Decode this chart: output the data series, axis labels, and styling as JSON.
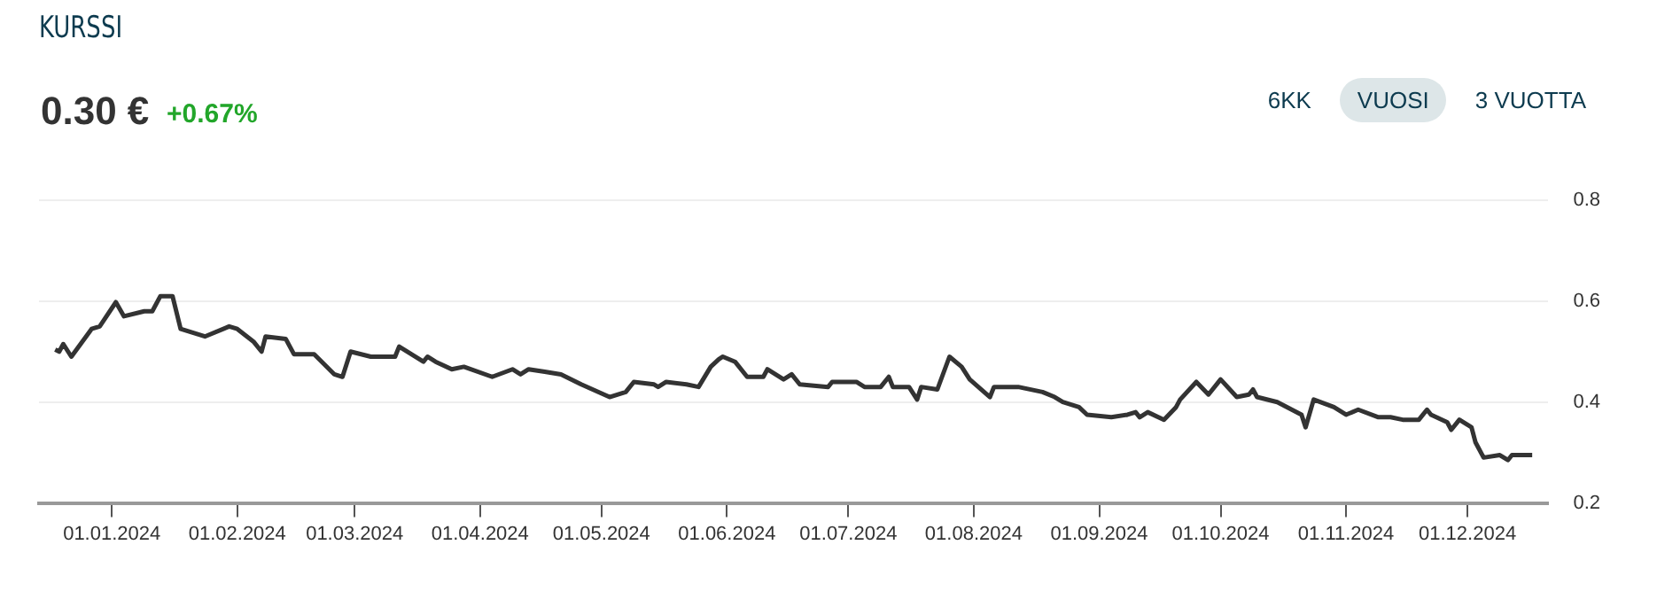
{
  "chart_data": {
    "type": "line",
    "title": "KURSSI",
    "subtitle": "0.30 €",
    "annotations": [
      "+0.67%",
      "6KK",
      "VUOSI",
      "3 VUOTTA"
    ],
    "x": [
      "2023-12-18",
      "2023-12-19",
      "2023-12-20",
      "2023-12-22",
      "2023-12-27",
      "2023-12-29",
      "2024-01-02",
      "2024-01-04",
      "2024-01-09",
      "2024-01-11",
      "2024-01-13",
      "2024-01-16",
      "2024-01-18",
      "2024-01-24",
      "2024-01-30",
      "2024-02-01",
      "2024-02-05",
      "2024-02-07",
      "2024-02-08",
      "2024-02-13",
      "2024-02-15",
      "2024-02-20",
      "2024-02-25",
      "2024-02-27",
      "2024-02-29",
      "2024-03-05",
      "2024-03-11",
      "2024-03-12",
      "2024-03-18",
      "2024-03-19",
      "2024-03-21",
      "2024-03-25",
      "2024-03-28",
      "2024-04-04",
      "2024-04-09",
      "2024-04-11",
      "2024-04-13",
      "2024-04-17",
      "2024-04-21",
      "2024-04-26",
      "2024-05-03",
      "2024-05-07",
      "2024-05-09",
      "2024-05-14",
      "2024-05-15",
      "2024-05-17",
      "2024-05-22",
      "2024-05-25",
      "2024-05-28",
      "2024-05-30",
      "2024-05-31",
      "2024-06-03",
      "2024-06-06",
      "2024-06-10",
      "2024-06-11",
      "2024-06-15",
      "2024-06-17",
      "2024-06-19",
      "2024-06-26",
      "2024-06-27",
      "2024-07-03",
      "2024-07-05",
      "2024-07-09",
      "2024-07-11",
      "2024-07-12",
      "2024-07-16",
      "2024-07-18",
      "2024-07-19",
      "2024-07-23",
      "2024-07-26",
      "2024-07-29",
      "2024-07-31",
      "2024-08-05",
      "2024-08-06",
      "2024-08-12",
      "2024-08-18",
      "2024-08-21",
      "2024-08-23",
      "2024-08-27",
      "2024-08-29",
      "2024-09-04",
      "2024-09-08",
      "2024-09-10",
      "2024-09-11",
      "2024-09-13",
      "2024-09-17",
      "2024-09-20",
      "2024-09-21",
      "2024-09-25",
      "2024-09-28",
      "2024-10-01",
      "2024-10-05",
      "2024-10-08",
      "2024-10-09",
      "2024-10-10",
      "2024-10-15",
      "2024-10-21",
      "2024-10-22",
      "2024-10-24",
      "2024-10-29",
      "2024-11-01",
      "2024-11-04",
      "2024-11-09",
      "2024-11-12",
      "2024-11-15",
      "2024-11-19",
      "2024-11-21",
      "2024-11-22",
      "2024-11-26",
      "2024-11-27",
      "2024-11-29",
      "2024-12-02",
      "2024-12-03",
      "2024-12-05",
      "2024-12-09",
      "2024-12-11",
      "2024-12-12",
      "2024-12-17"
    ],
    "series": [
      {
        "color": "#333333",
        "values": [
          0.504,
          0.5,
          0.515,
          0.49,
          0.545,
          0.55,
          0.598,
          0.57,
          0.58,
          0.58,
          0.61,
          0.61,
          0.545,
          0.53,
          0.55,
          0.545,
          0.52,
          0.5,
          0.53,
          0.525,
          0.495,
          0.495,
          0.455,
          0.45,
          0.5,
          0.49,
          0.49,
          0.51,
          0.48,
          0.49,
          0.48,
          0.465,
          0.47,
          0.45,
          0.465,
          0.455,
          0.465,
          0.46,
          0.455,
          0.435,
          0.41,
          0.42,
          0.44,
          0.435,
          0.43,
          0.44,
          0.435,
          0.43,
          0.47,
          0.485,
          0.49,
          0.48,
          0.45,
          0.45,
          0.465,
          0.445,
          0.455,
          0.435,
          0.43,
          0.44,
          0.44,
          0.43,
          0.43,
          0.45,
          0.43,
          0.43,
          0.405,
          0.43,
          0.425,
          0.49,
          0.47,
          0.445,
          0.41,
          0.43,
          0.43,
          0.42,
          0.41,
          0.4,
          0.39,
          0.375,
          0.37,
          0.375,
          0.38,
          0.37,
          0.38,
          0.365,
          0.39,
          0.405,
          0.44,
          0.415,
          0.445,
          0.41,
          0.415,
          0.425,
          0.41,
          0.4,
          0.375,
          0.35,
          0.405,
          0.39,
          0.375,
          0.385,
          0.37,
          0.37,
          0.365,
          0.365,
          0.385,
          0.375,
          0.36,
          0.345,
          0.365,
          0.35,
          0.32,
          0.29,
          0.295,
          0.285,
          0.295,
          0.295
        ]
      }
    ],
    "xlim": [
      "2023-12-14",
      "2024-12-21"
    ],
    "xticks": [
      {
        "value": "2024-01-01",
        "label": "01.01.2024"
      },
      {
        "value": "2024-02-01",
        "label": "01.02.2024"
      },
      {
        "value": "2024-03-01",
        "label": "01.03.2024"
      },
      {
        "value": "2024-04-01",
        "label": "01.04.2024"
      },
      {
        "value": "2024-05-01",
        "label": "01.05.2024"
      },
      {
        "value": "2024-06-01",
        "label": "01.06.2024"
      },
      {
        "value": "2024-07-01",
        "label": "01.07.2024"
      },
      {
        "value": "2024-08-01",
        "label": "01.08.2024"
      },
      {
        "value": "2024-09-01",
        "label": "01.09.2024"
      },
      {
        "value": "2024-10-01",
        "label": "01.10.2024"
      },
      {
        "value": "2024-11-01",
        "label": "01.11.2024"
      },
      {
        "value": "2024-12-01",
        "label": "01.12.2024"
      }
    ],
    "ylim": [
      0.2,
      0.8
    ],
    "yticks": [
      0.2,
      0.4,
      0.6,
      0.8
    ],
    "grid": "y",
    "legend": false,
    "marker": "none",
    "line_style": "solid"
  }
}
